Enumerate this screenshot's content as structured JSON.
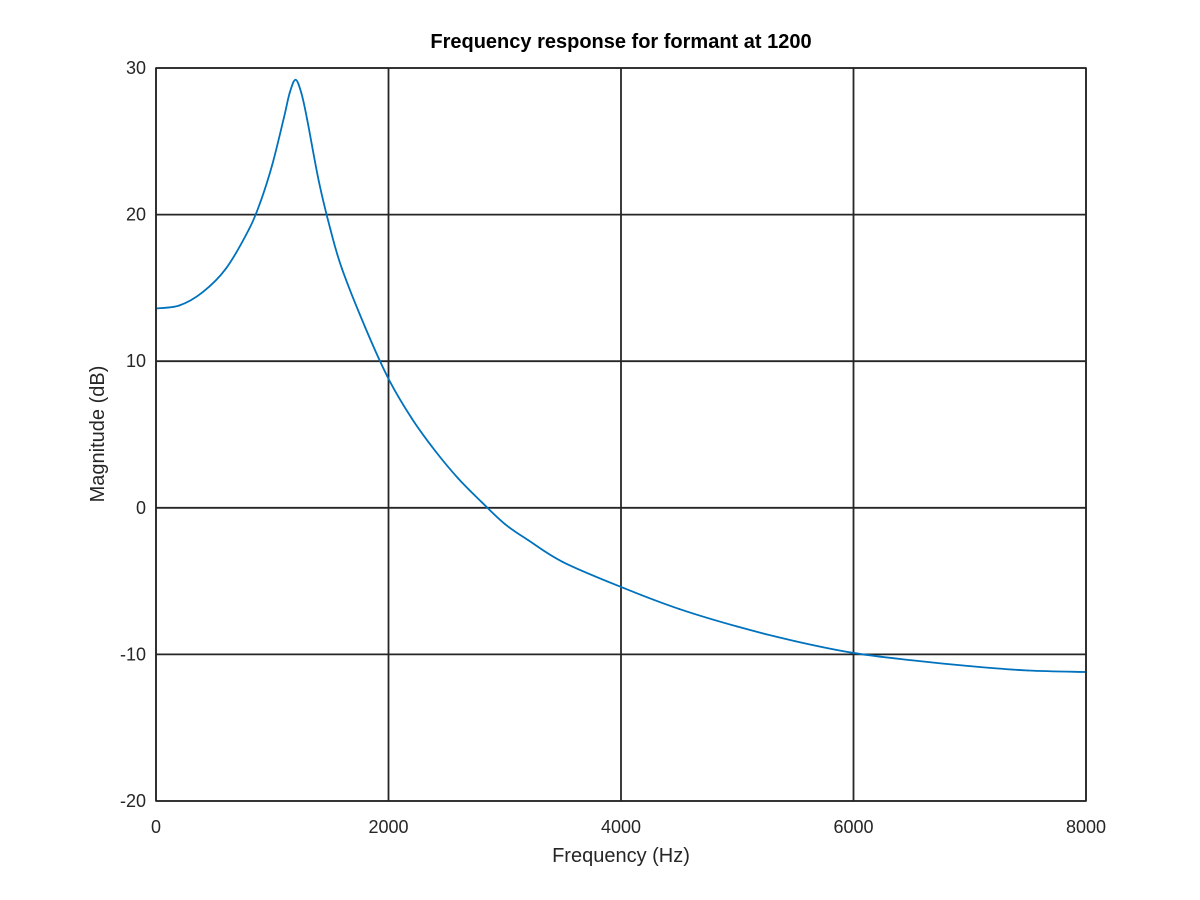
{
  "chart_data": {
    "type": "line",
    "title": "Frequency response for formant at 1200",
    "xlabel": "Frequency (Hz)",
    "ylabel": "Magnitude (dB)",
    "xlim": [
      0,
      8000
    ],
    "ylim": [
      -20,
      30
    ],
    "x_ticks": [
      0,
      2000,
      4000,
      6000,
      8000
    ],
    "x_tick_labels": [
      "0",
      "2000",
      "4000",
      "6000",
      "8000"
    ],
    "y_ticks": [
      -20,
      -10,
      0,
      10,
      20,
      30
    ],
    "y_tick_labels": [
      "-20",
      "-10",
      "0",
      "10",
      "20",
      "30"
    ],
    "grid": true,
    "series": [
      {
        "color": "#0072bd",
        "points": [
          [
            0,
            13.6
          ],
          [
            200,
            13.8
          ],
          [
            400,
            14.7
          ],
          [
            600,
            16.3
          ],
          [
            800,
            19.0
          ],
          [
            900,
            20.9
          ],
          [
            1000,
            23.4
          ],
          [
            1100,
            26.6
          ],
          [
            1150,
            28.3
          ],
          [
            1200,
            29.2
          ],
          [
            1250,
            28.3
          ],
          [
            1300,
            26.5
          ],
          [
            1400,
            22.3
          ],
          [
            1500,
            19.0
          ],
          [
            1600,
            16.3
          ],
          [
            1800,
            12.3
          ],
          [
            2000,
            8.8
          ],
          [
            2200,
            6.1
          ],
          [
            2400,
            3.9
          ],
          [
            2600,
            2.0
          ],
          [
            2800,
            0.4
          ],
          [
            3000,
            -1.1
          ],
          [
            3200,
            -2.2
          ],
          [
            3500,
            -3.7
          ],
          [
            4000,
            -5.4
          ],
          [
            4500,
            -6.9
          ],
          [
            5000,
            -8.1
          ],
          [
            5500,
            -9.1
          ],
          [
            6000,
            -9.9
          ],
          [
            6500,
            -10.4
          ],
          [
            7000,
            -10.8
          ],
          [
            7500,
            -11.1
          ],
          [
            8000,
            -11.2
          ]
        ]
      }
    ]
  }
}
